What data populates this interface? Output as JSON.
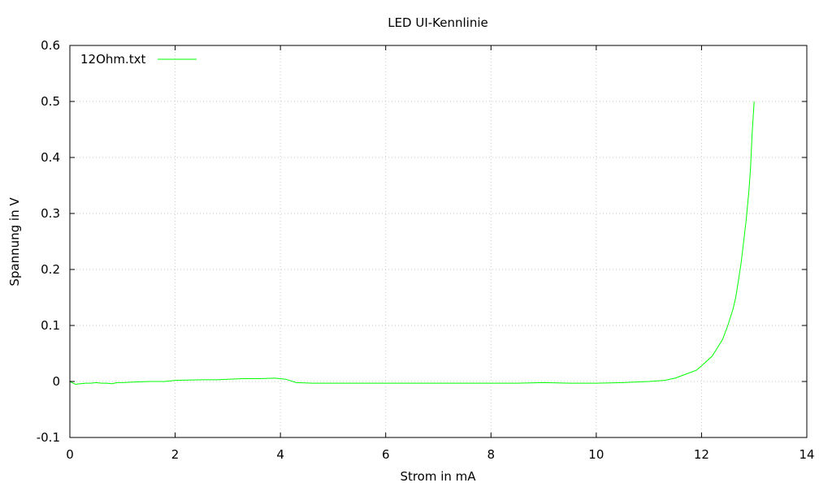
{
  "chart_data": {
    "type": "line",
    "title": "LED UI-Kennlinie",
    "xlabel": "Strom in mA",
    "ylabel": "Spannung in V",
    "xlim": [
      0,
      14
    ],
    "ylim": [
      -0.1,
      0.6
    ],
    "xticks": [
      0,
      2,
      4,
      6,
      8,
      10,
      12,
      14
    ],
    "yticks": [
      -0.1,
      0,
      0.1,
      0.2,
      0.3,
      0.4,
      0.5,
      0.6
    ],
    "grid": true,
    "legend": "top-left",
    "series": [
      {
        "name": "12Ohm.txt",
        "color": "#00ff00",
        "x": [
          0,
          0.1,
          0.2,
          0.3,
          0.4,
          0.5,
          0.6,
          0.7,
          0.8,
          0.9,
          1.0,
          1.2,
          1.5,
          1.8,
          2.0,
          2.5,
          2.8,
          3.0,
          3.3,
          3.6,
          3.9,
          4.1,
          4.3,
          4.6,
          5.0,
          5.5,
          6.0,
          6.5,
          7.0,
          7.5,
          8.0,
          8.5,
          9.0,
          9.5,
          10.0,
          10.5,
          11.0,
          11.3,
          11.5,
          11.7,
          11.9,
          12.0,
          12.2,
          12.3,
          12.4,
          12.5,
          12.6,
          12.65,
          12.7,
          12.75,
          12.8,
          12.85,
          12.9,
          12.93,
          12.96,
          13.0
        ],
        "y": [
          0,
          -0.005,
          -0.004,
          -0.003,
          -0.003,
          -0.002,
          -0.003,
          -0.003,
          -0.004,
          -0.002,
          -0.002,
          -0.001,
          0,
          0,
          0.002,
          0.003,
          0.003,
          0.004,
          0.005,
          0.005,
          0.006,
          0.004,
          -0.002,
          -0.003,
          -0.003,
          -0.003,
          -0.003,
          -0.003,
          -0.003,
          -0.003,
          -0.003,
          -0.003,
          -0.002,
          -0.003,
          -0.003,
          -0.002,
          0,
          0.002,
          0.006,
          0.013,
          0.02,
          0.028,
          0.045,
          0.06,
          0.075,
          0.1,
          0.13,
          0.15,
          0.18,
          0.21,
          0.25,
          0.29,
          0.34,
          0.38,
          0.44,
          0.5
        ]
      }
    ]
  }
}
